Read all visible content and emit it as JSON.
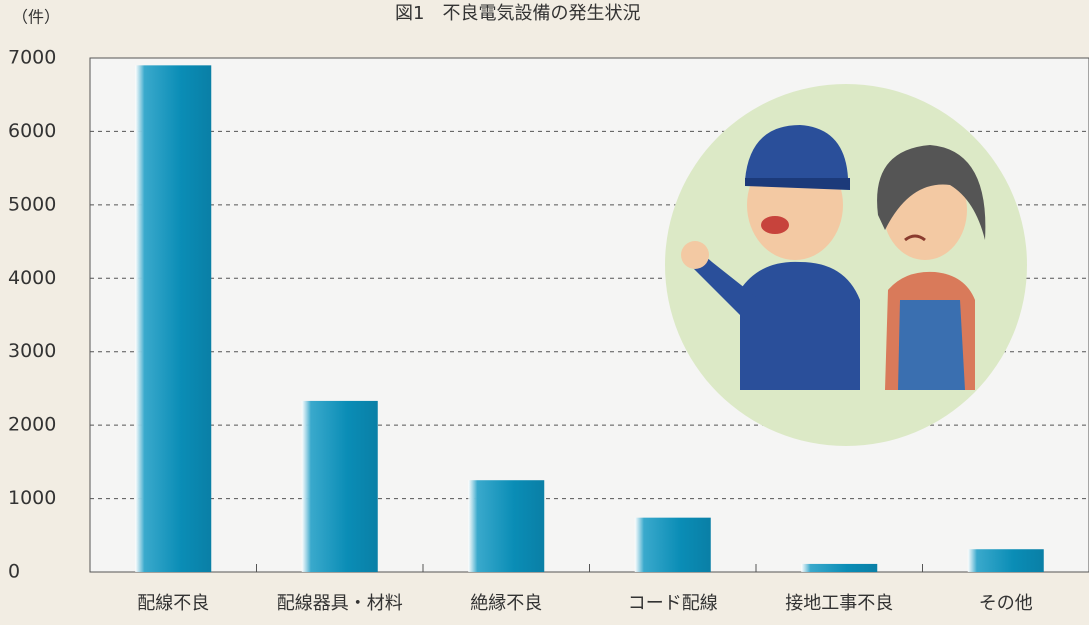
{
  "chart_data": {
    "type": "bar",
    "title": "図1　不良電気設備の発生状況",
    "y_unit_label": "（件）",
    "categories": [
      "配線不良",
      "配線器具・材料",
      "絶縁不良",
      "コード配線",
      "接地工事不良",
      "その他"
    ],
    "values": [
      6900,
      2330,
      1250,
      740,
      110,
      310
    ],
    "color": "#0a8db6",
    "ylim": [
      0,
      7000
    ],
    "yticks": [
      0,
      1000,
      2000,
      3000,
      4000,
      5000,
      6000,
      7000
    ],
    "grid": true
  }
}
